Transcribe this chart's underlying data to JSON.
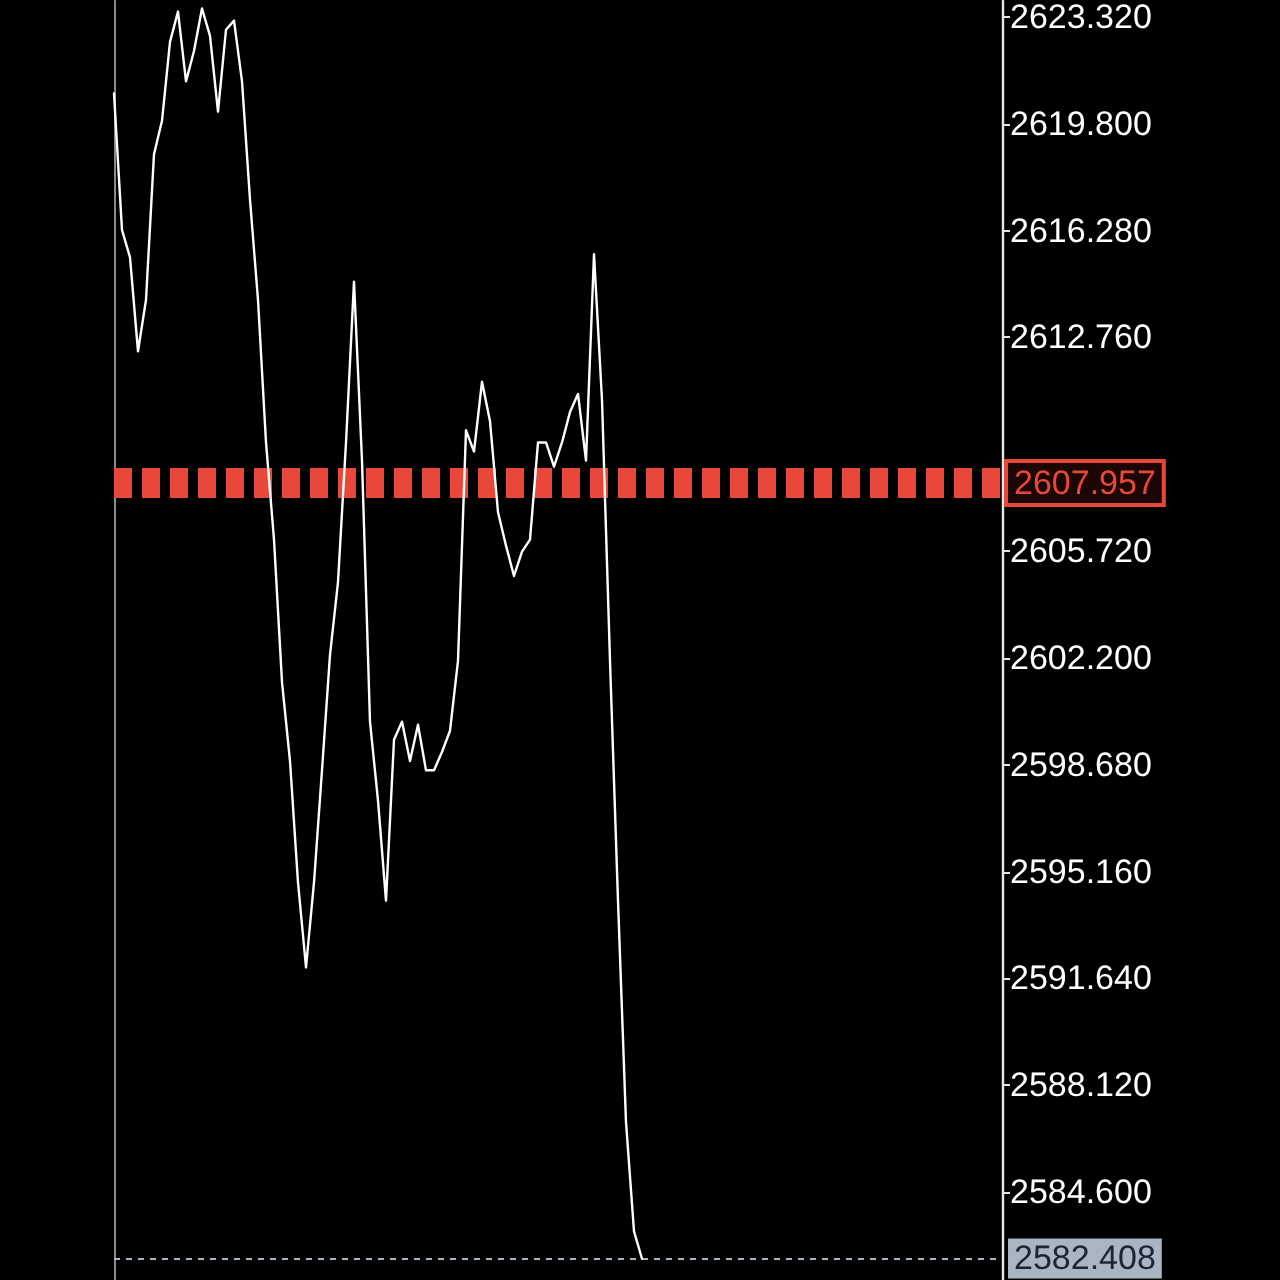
{
  "chart_data": {
    "type": "line",
    "categories": [
      null,
      null,
      null,
      null,
      null,
      null,
      null,
      null,
      null,
      null,
      null,
      null,
      null,
      null,
      null,
      null,
      null,
      null,
      null,
      null,
      null,
      null,
      null,
      null,
      null,
      null,
      null,
      null,
      null,
      null,
      null,
      null,
      null,
      null,
      null,
      null,
      null,
      null,
      null,
      null,
      null,
      null,
      null,
      null,
      null,
      null,
      null,
      null,
      null,
      null,
      null,
      null,
      null,
      null,
      null,
      null,
      null,
      null,
      null,
      null,
      null,
      null,
      null,
      null,
      null,
      null,
      null,
      null,
      null,
      null,
      null,
      null,
      null,
      null,
      null,
      null,
      null,
      null,
      null,
      null,
      null,
      null,
      null,
      null,
      null,
      null,
      null,
      null,
      null,
      null,
      null,
      null,
      null,
      null,
      null,
      null,
      null,
      null,
      null,
      null,
      null,
      null,
      null,
      null,
      null,
      null,
      null,
      null,
      null,
      null,
      null,
      null
    ],
    "series": [
      {
        "color": "#ffffff",
        "values": [
          2620.8,
          2616.3,
          2615.4,
          2612.3,
          2614.0,
          2618.8,
          2619.9,
          2622.5,
          2623.5,
          2621.2,
          2622.2,
          2623.6,
          2622.7,
          2620.2,
          2622.9,
          2623.2,
          2621.2,
          2617.3,
          2614.0,
          2609.3,
          2606.1,
          2601.4,
          2598.8,
          2594.8,
          2592.0,
          2594.8,
          2598.5,
          2602.3,
          2604.7,
          2609.3,
          2614.6,
          2608.7,
          2600.1,
          2597.5,
          2594.2,
          2599.5,
          2600.1,
          2598.8,
          2600.0,
          2598.5,
          2598.5,
          2599.1,
          2599.8,
          2602.1,
          2609.7,
          2609.0,
          2611.3,
          2610.0,
          2607.0,
          2605.9,
          2604.9,
          2605.7,
          2606.1,
          2609.3,
          2609.3,
          2608.5,
          2609.3,
          2610.3,
          2610.9,
          2608.7,
          2615.5,
          2610.7,
          2602.1,
          2594.2,
          2586.9,
          2583.3,
          2582.4,
          null,
          null,
          null,
          null,
          null,
          null,
          null,
          null,
          null,
          null,
          null,
          null,
          null,
          null,
          null,
          null,
          null,
          null,
          null,
          null,
          null,
          null,
          null,
          null,
          null,
          null,
          null,
          null,
          null,
          null,
          null,
          null,
          null,
          null,
          null,
          null,
          null,
          null,
          null,
          null,
          null,
          null,
          null,
          null,
          null
        ]
      }
    ],
    "ylim": [
      2581.7,
      2623.85
    ],
    "yticks": [
      {
        "value": 2623.32,
        "label": "2623.320"
      },
      {
        "value": 2619.8,
        "label": "2619.800"
      },
      {
        "value": 2616.28,
        "label": "2616.280"
      },
      {
        "value": 2612.76,
        "label": "2612.760"
      },
      {
        "value": 2605.72,
        "label": "2605.720"
      },
      {
        "value": 2602.2,
        "label": "2602.200"
      },
      {
        "value": 2598.68,
        "label": "2598.680"
      },
      {
        "value": 2595.16,
        "label": "2595.160"
      },
      {
        "value": 2591.64,
        "label": "2591.640"
      },
      {
        "value": 2588.12,
        "label": "2588.120"
      },
      {
        "value": 2584.6,
        "label": "2584.600"
      }
    ],
    "ref_lines": [
      {
        "axis": "y",
        "value": 2607.957,
        "label": "2607.957",
        "color": "#e8473a",
        "line_style": "dashed"
      },
      {
        "axis": "y",
        "value": 2582.408,
        "label": "2582.408",
        "color": "#aab5c3",
        "line_style": "dashed"
      }
    ],
    "line_style": "solid",
    "tick_labels": "y"
  }
}
